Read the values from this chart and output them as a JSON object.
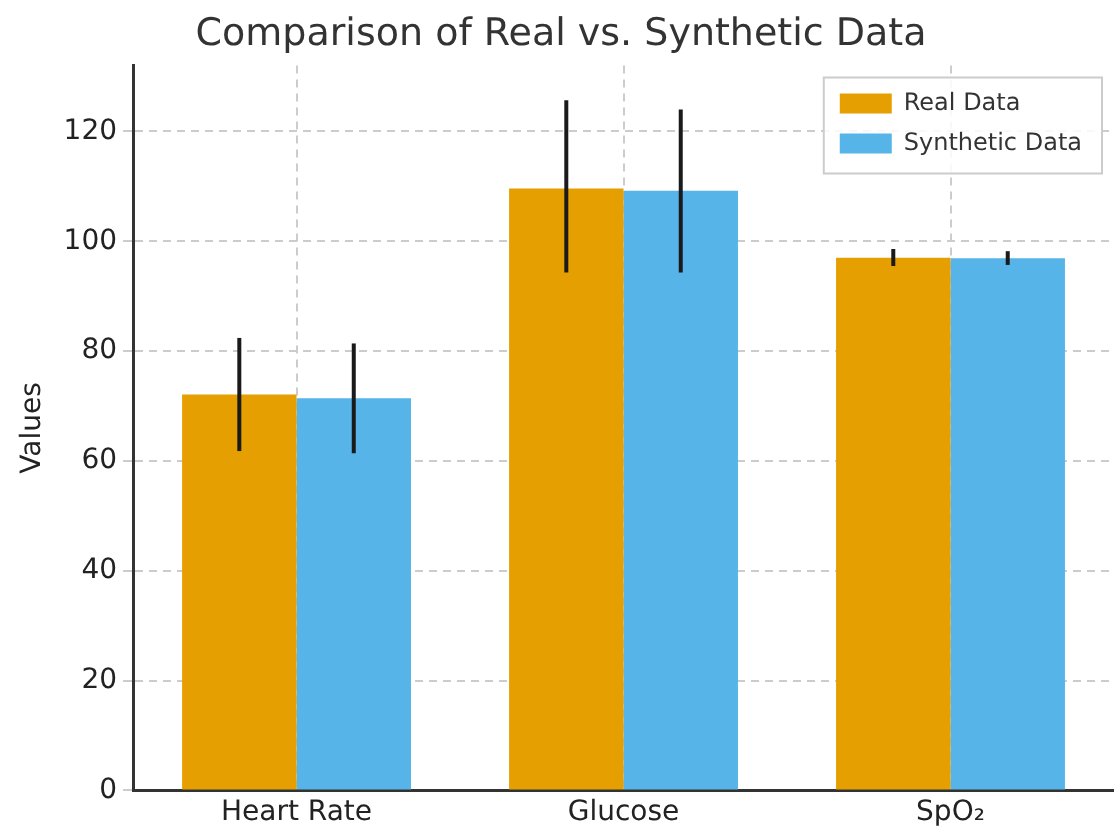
{
  "chart_data": {
    "type": "bar",
    "title": "Comparison of Real vs. Synthetic Data",
    "ylabel": "Values",
    "categories": [
      "Heart Rate",
      "Glucose",
      "SpO₂"
    ],
    "series": [
      {
        "name": "Real Data",
        "color": "#e69f00",
        "values": [
          72.1,
          109.6,
          97.0
        ],
        "errors": [
          [
            61.8,
            82.4
          ],
          [
            94.3,
            125.7
          ],
          [
            95.5,
            98.6
          ]
        ]
      },
      {
        "name": "Synthetic Data",
        "color": "#56b4e9",
        "values": [
          71.4,
          109.2,
          96.9
        ],
        "errors": [
          [
            61.4,
            81.4
          ],
          [
            94.3,
            124.0
          ],
          [
            95.7,
            98.2
          ]
        ]
      }
    ],
    "ylim": [
      0,
      132
    ],
    "yticks": [
      0,
      20,
      40,
      60,
      80,
      100,
      120
    ],
    "grid": true,
    "legend": "top right"
  }
}
